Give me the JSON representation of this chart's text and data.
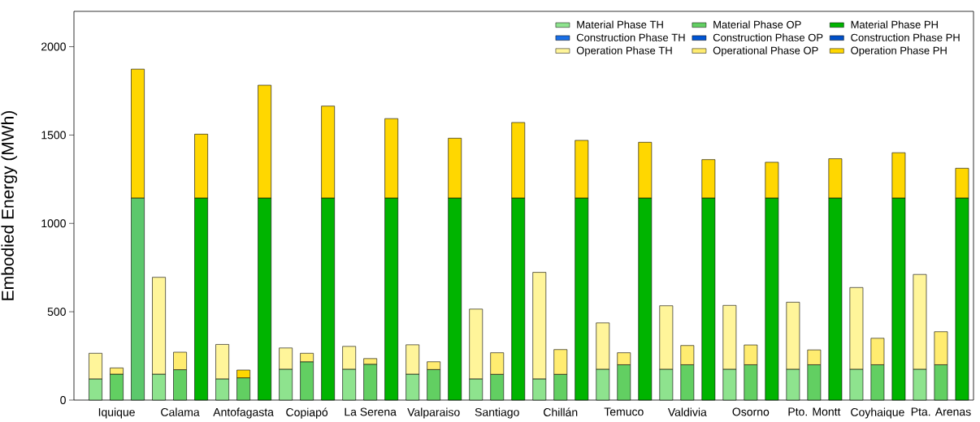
{
  "chart_data": {
    "type": "bar",
    "stacked": true,
    "ylabel": "Embodied Energy (MWh)",
    "categories": [
      null,
      "Iquique",
      null,
      null,
      "Calama",
      null,
      null,
      "Antofagasta",
      null,
      null,
      "Copiapó",
      null,
      null,
      "La Serena",
      null,
      null,
      "Valparaiso",
      null,
      null,
      "Santiago",
      null,
      null,
      "Chillán",
      null,
      null,
      "Temuco",
      null,
      null,
      "Valdivia",
      null,
      null,
      "Osorno",
      null,
      null,
      "Pto. Montt",
      null,
      null,
      "Coyhaique",
      null,
      null,
      "Pta. Arenas",
      null
    ],
    "ylim": [
      0,
      2200
    ],
    "yticks": [
      0,
      500,
      1000,
      1500,
      2000
    ],
    "legend": "top right",
    "series": [
      {
        "name": "Material Phase TH",
        "color": "#8ee38e",
        "values": [
          120,
          null,
          null,
          147,
          null,
          null,
          120,
          null,
          null,
          175,
          null,
          null,
          175,
          null,
          null,
          147,
          null,
          null,
          120,
          null,
          null,
          120,
          null,
          null,
          175,
          null,
          null,
          175,
          null,
          null,
          175,
          null,
          null,
          175,
          null,
          null,
          175,
          null,
          null,
          175,
          null,
          null
        ]
      },
      {
        "name": "Construction Phase TH",
        "color": "#1a6fe6",
        "values": [
          null,
          null,
          null,
          null,
          null,
          null,
          null,
          null,
          null,
          null,
          null,
          null,
          null,
          null,
          null,
          null,
          null,
          null,
          null,
          null,
          null,
          null,
          null,
          null,
          null,
          null,
          null,
          null,
          null,
          null,
          null,
          null,
          null,
          null,
          null,
          null,
          null,
          null,
          null,
          null,
          null,
          null
        ]
      },
      {
        "name": "Operation Phase TH",
        "color": "#fff59a",
        "values": [
          145,
          null,
          null,
          548,
          null,
          null,
          195,
          null,
          null,
          120,
          null,
          null,
          129,
          null,
          null,
          166,
          null,
          null,
          395,
          null,
          null,
          603,
          null,
          null,
          262,
          null,
          null,
          359,
          null,
          null,
          361,
          null,
          null,
          379,
          null,
          null,
          462,
          null,
          null,
          536,
          null,
          null
        ]
      },
      {
        "name": "Material Phase OP",
        "color": "#62cf62",
        "values": [
          null,
          147,
          null,
          null,
          172,
          null,
          null,
          126,
          null,
          null,
          217,
          null,
          null,
          203,
          null,
          null,
          173,
          null,
          null,
          146,
          null,
          null,
          146,
          null,
          null,
          200,
          null,
          null,
          200,
          null,
          null,
          200,
          null,
          null,
          200,
          null,
          null,
          200,
          null,
          null,
          200,
          null
        ]
      },
      {
        "name": "Construction Phase OP",
        "color": "#0055d4",
        "values": [
          null,
          null,
          null,
          null,
          null,
          null,
          null,
          null,
          null,
          null,
          null,
          null,
          null,
          null,
          null,
          null,
          null,
          null,
          null,
          null,
          null,
          null,
          null,
          null,
          null,
          null,
          null,
          null,
          null,
          null,
          null,
          null,
          null,
          null,
          null,
          null,
          null,
          null,
          null,
          null,
          null,
          null
        ]
      },
      {
        "name": "Operational Phase OP",
        "color": "#ffec70",
        "colors": [
          "#ffec70",
          "#ffec70",
          "#ffec70",
          "#ffec70",
          "#ffec70",
          "#ffec70",
          "#ffec70",
          "#ffd700",
          "#ffec70",
          "#ffec70",
          "#ffec70",
          "#ffec70",
          "#ffec70",
          "#ffec70",
          "#ffec70",
          "#ffec70",
          "#ffec70",
          "#ffec70",
          "#ffec70",
          "#ffec70",
          "#ffec70",
          "#ffec70",
          "#ffec70",
          "#ffec70",
          "#ffec70",
          "#ffec70",
          "#ffec70",
          "#ffec70",
          "#ffec70",
          "#ffec70",
          "#ffec70",
          "#ffec70",
          "#ffec70",
          "#ffec70",
          "#ffec70",
          "#ffec70",
          "#ffec70",
          "#ffec70",
          "#ffec70",
          "#ffec70",
          "#ffec70",
          "#ffec70"
        ],
        "values": [
          null,
          35,
          null,
          null,
          99,
          null,
          null,
          44,
          null,
          null,
          48,
          null,
          null,
          32,
          null,
          null,
          44,
          null,
          null,
          122,
          null,
          null,
          140,
          null,
          null,
          68,
          null,
          null,
          109,
          null,
          null,
          112,
          null,
          null,
          84,
          null,
          null,
          150,
          null,
          null,
          187,
          null
        ]
      },
      {
        "name": "Material Phase PH",
        "color": "#00b400",
        "colors": [
          "#00b400",
          "#00b400",
          "#5cc86c",
          "#00b400",
          "#00b400",
          "#00b400",
          "#00b400",
          "#00b400",
          "#00b400",
          "#00b400",
          "#00b400",
          "#00b400",
          "#00b400",
          "#00b400",
          "#00b400",
          "#00b400",
          "#00b400",
          "#00b400",
          "#00b400",
          "#00b400",
          "#00b400",
          "#00b400",
          "#00b400",
          "#00b400",
          "#00b400",
          "#00b400",
          "#00b400",
          "#00b400",
          "#00b400",
          "#00b400",
          "#00b400",
          "#00b400",
          "#00b400",
          "#00b400",
          "#00b400",
          "#00b400",
          "#00b400",
          "#00b400",
          "#00b400",
          "#00b400",
          "#00b400",
          "#00b400"
        ],
        "values": [
          null,
          null,
          1144,
          null,
          null,
          1144,
          null,
          null,
          1144,
          null,
          null,
          1144,
          null,
          null,
          1144,
          null,
          null,
          1144,
          null,
          null,
          1144,
          null,
          null,
          1144,
          null,
          null,
          1144,
          null,
          null,
          1144,
          null,
          null,
          1144,
          null,
          null,
          1144,
          null,
          null,
          1144,
          null,
          null,
          1144
        ]
      },
      {
        "name": "Construction Phase PH",
        "color": "#0050c8",
        "values": [
          null,
          null,
          null,
          null,
          null,
          null,
          null,
          null,
          null,
          null,
          null,
          null,
          null,
          null,
          null,
          null,
          null,
          null,
          null,
          null,
          null,
          null,
          null,
          null,
          null,
          null,
          null,
          null,
          null,
          null,
          null,
          null,
          null,
          null,
          null,
          null,
          null,
          null,
          null,
          null,
          null,
          null
        ]
      },
      {
        "name": "Operation Phase PH",
        "color": "#ffd700",
        "values": [
          null,
          null,
          729,
          null,
          null,
          361,
          null,
          null,
          638,
          null,
          null,
          520,
          null,
          null,
          449,
          null,
          null,
          338,
          null,
          null,
          427,
          null,
          null,
          326,
          null,
          null,
          315,
          null,
          null,
          217,
          null,
          null,
          202,
          null,
          null,
          222,
          null,
          null,
          256,
          null,
          null,
          168
        ]
      }
    ]
  }
}
